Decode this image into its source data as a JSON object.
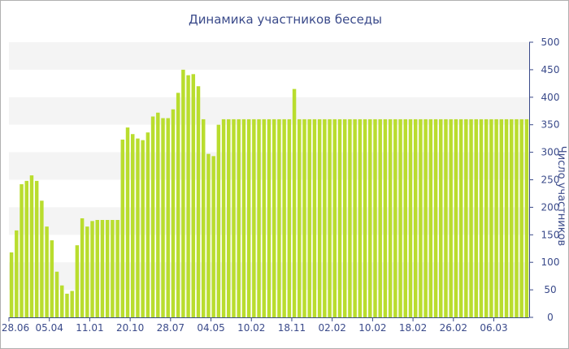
{
  "chart_data": {
    "type": "bar",
    "title": "Динамика участников беседы",
    "ylabel": "Число участников",
    "ylim": [
      0,
      500
    ],
    "yticks": [
      0,
      50,
      100,
      150,
      200,
      250,
      300,
      350,
      400,
      450,
      500
    ],
    "grid": "horizontal bands",
    "y_axis_position": "right",
    "bar_color": "#b9dd2e",
    "band_color": "#f4f4f4",
    "x_tick_labels": [
      {
        "label": "28.06",
        "index": 0
      },
      {
        "label": "05.04",
        "index": 8
      },
      {
        "label": "11.01",
        "index": 16
      },
      {
        "label": "20.10",
        "index": 24
      },
      {
        "label": "28.07",
        "index": 32
      },
      {
        "label": "04.05",
        "index": 40
      },
      {
        "label": "10.02",
        "index": 48
      },
      {
        "label": "18.11",
        "index": 56
      },
      {
        "label": "02.02",
        "index": 64
      },
      {
        "label": "10.02",
        "index": 72
      },
      {
        "label": "18.02",
        "index": 80
      },
      {
        "label": "26.02",
        "index": 88
      },
      {
        "label": "06.03",
        "index": 96
      }
    ],
    "values": [
      118,
      158,
      242,
      248,
      258,
      248,
      212,
      165,
      140,
      83,
      58,
      43,
      48,
      131,
      180,
      165,
      175,
      177,
      177,
      177,
      177,
      177,
      323,
      345,
      333,
      325,
      322,
      336,
      365,
      372,
      362,
      362,
      378,
      408,
      450,
      440,
      442,
      420,
      360,
      297,
      293,
      350,
      360,
      360,
      360,
      360,
      360,
      360,
      360,
      360,
      360,
      360,
      360,
      360,
      360,
      360,
      415,
      360,
      360,
      360,
      360,
      360,
      360,
      360,
      360,
      360,
      360,
      360,
      360,
      360,
      360,
      360,
      360,
      360,
      360,
      360,
      360,
      360,
      360,
      360,
      360,
      360,
      360,
      360,
      360,
      360,
      360,
      360,
      360,
      360,
      360,
      360,
      360,
      360,
      360,
      360,
      360,
      360,
      360,
      360,
      360,
      360,
      360
    ]
  }
}
